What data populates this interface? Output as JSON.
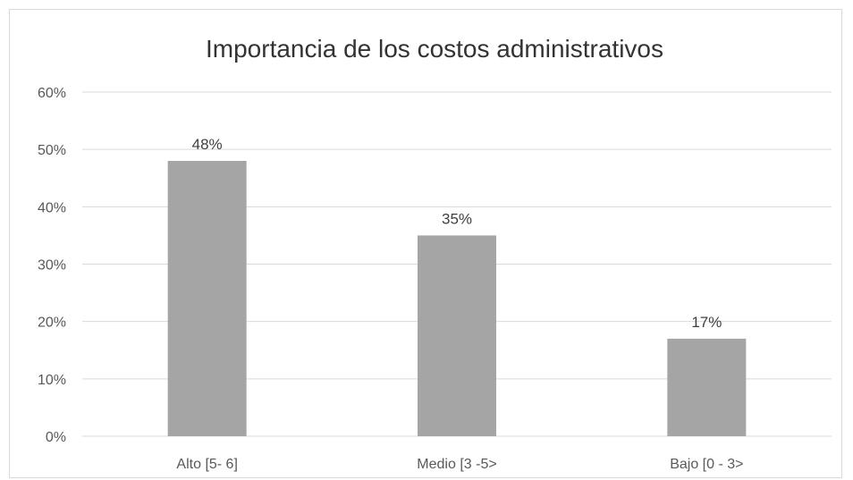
{
  "chart_data": {
    "type": "bar",
    "title": "Importancia de los costos administrativos",
    "xlabel": "",
    "ylabel": "",
    "categories": [
      "Alto [5- 6]",
      "Medio [3 -5>",
      "Bajo [0 - 3>"
    ],
    "values": [
      0.48,
      0.35,
      0.17
    ],
    "data_labels": [
      "48%",
      "35%",
      "17%"
    ],
    "y_ticks": [
      {
        "value": 0.0,
        "label": "0%"
      },
      {
        "value": 0.1,
        "label": "10%"
      },
      {
        "value": 0.2,
        "label": "20%"
      },
      {
        "value": 0.3,
        "label": "30%"
      },
      {
        "value": 0.4,
        "label": "40%"
      },
      {
        "value": 0.5,
        "label": "50%"
      },
      {
        "value": 0.6,
        "label": "60%"
      }
    ],
    "ylim": [
      0,
      0.6
    ],
    "grid": true,
    "legend": "none",
    "bar_color": "#a5a5a5"
  }
}
